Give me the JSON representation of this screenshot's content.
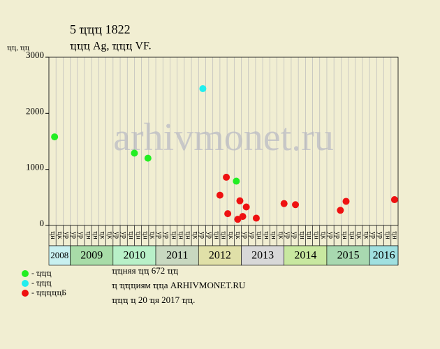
{
  "chart_data": {
    "type": "scatter",
    "title": "5 ҵҵҵ 1822",
    "subtitle": "ҵҵҵ Ag, ҵҵҵ VF.",
    "y_label": "ҵҵ, ҵҵ",
    "watermark": "arhivmonet.ru",
    "xlim": [
      0,
      49
    ],
    "ylim": [
      0,
      3000
    ],
    "yticks": [
      0,
      1000,
      2000,
      3000
    ],
    "grid": true,
    "years": [
      {
        "label": "2008",
        "color": "#c8f0f0",
        "months": [
          "ҵн",
          "ҵк",
          "ур"
        ]
      },
      {
        "label": "2009",
        "color": "#a8dca8",
        "months": [
          "ур",
          "ур",
          "ҵн",
          "ҵн",
          "ҵк",
          "ҵк"
        ]
      },
      {
        "label": "2010",
        "color": "#b8f0c8",
        "months": [
          "ур",
          "ур",
          "ҵн",
          "ҵн",
          "ҵн",
          "ҵк"
        ]
      },
      {
        "label": "2011",
        "color": "#c8d8c0",
        "months": [
          "ур",
          "ур",
          "ҵн",
          "ҵн",
          "ҵн",
          "ҵк"
        ]
      },
      {
        "label": "2012",
        "color": "#e0e0a8",
        "months": [
          "ур",
          "ур",
          "ҵн",
          "ҵн",
          "ҵк",
          "ҵк"
        ]
      },
      {
        "label": "2013",
        "color": "#d8d8d8",
        "months": [
          "ур",
          "ур",
          "ҵн",
          "ҵн",
          "ҵн",
          "ҵк"
        ]
      },
      {
        "label": "2014",
        "color": "#c8e8a0",
        "months": [
          "ур",
          "ур",
          "ҵн",
          "ҵн",
          "ҵн",
          "ҵк"
        ]
      },
      {
        "label": "2015",
        "color": "#a8d8b0",
        "months": [
          "ур",
          "ур",
          "ҵн",
          "ҵн",
          "ҵк",
          "ҵк"
        ]
      },
      {
        "label": "2016",
        "color": "#a0e0e0",
        "months": [
          "ур",
          "ур",
          "ҵн",
          "ҵн"
        ]
      }
    ],
    "series": [
      {
        "name": "- ҵҵҵ",
        "color": "#22ee22",
        "x": [
          0.8,
          12.0,
          13.9,
          26.3
        ],
        "values": [
          1580,
          1290,
          1200,
          790
        ]
      },
      {
        "name": "- ҵҵҵ",
        "color": "#22eeee",
        "x": [
          21.6
        ],
        "values": [
          2440
        ]
      },
      {
        "name": "- ҵҵҵҵҵБ",
        "color": "#ee1111",
        "x": [
          24.0,
          24.9,
          25.1,
          26.5,
          26.8,
          27.2,
          27.7,
          29.1,
          33.0,
          34.6,
          40.9,
          41.7,
          48.5
        ],
        "values": [
          540,
          860,
          210,
          110,
          440,
          160,
          330,
          130,
          390,
          370,
          270,
          430,
          460
        ]
      }
    ],
    "notes": [
      "ҵҵняя ҵҵ 672 ҵҵ",
      "ҵ ҵҵҵиям ҵҵа ARHIVMONET.RU",
      "ҵҵҵ ҵ 20 ҵя 2017 ҵҵ."
    ]
  }
}
